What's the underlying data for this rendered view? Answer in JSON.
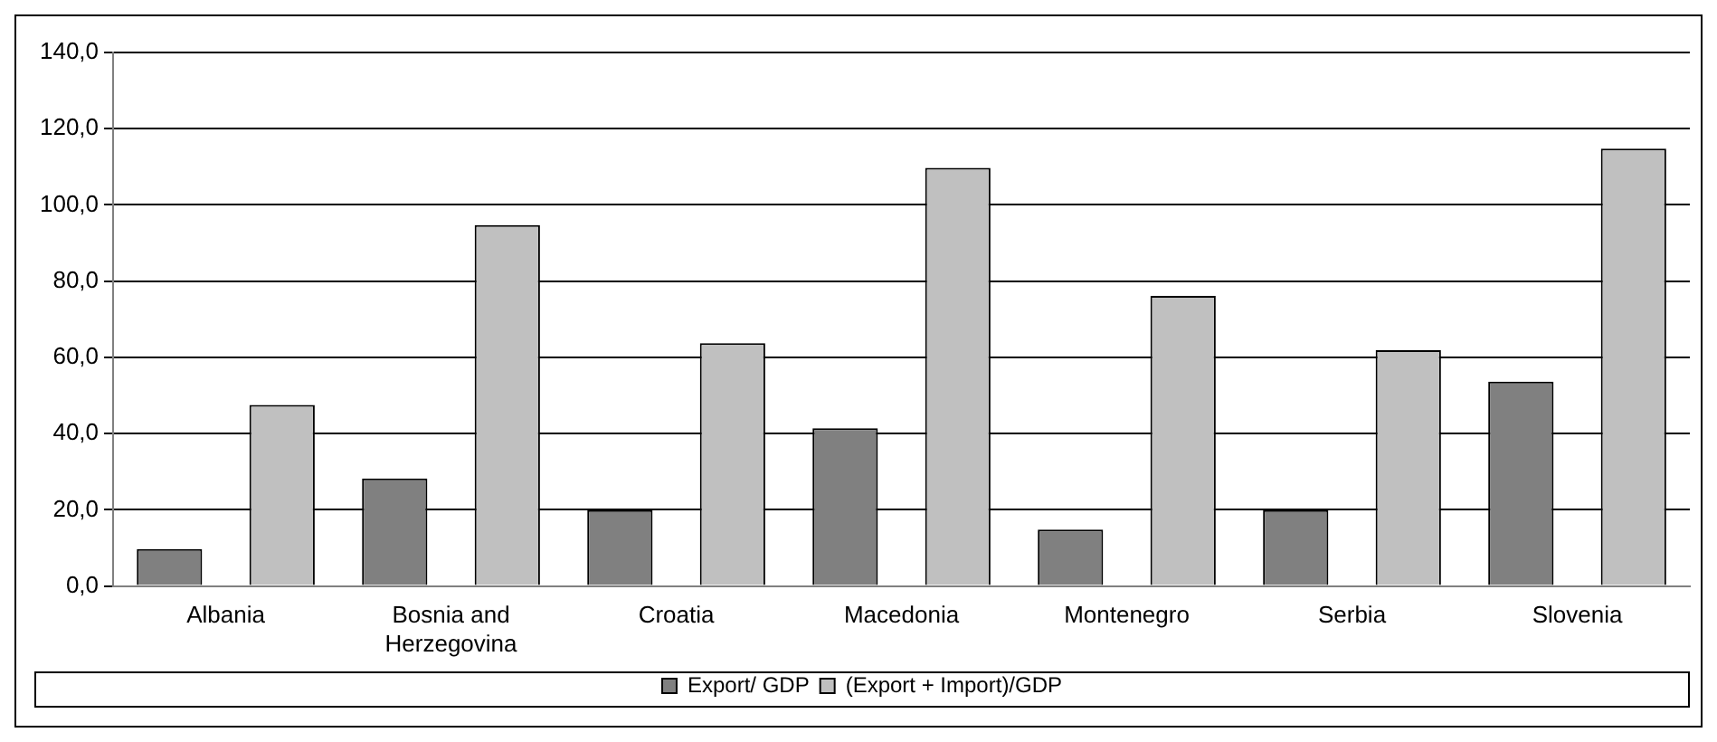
{
  "chart_data": {
    "type": "bar",
    "categories": [
      "Albania",
      "Bosnia and Herzegovina",
      "Croatia",
      "Macedonia",
      "Montenegro",
      "Serbia",
      "Slovenia"
    ],
    "series": [
      {
        "name": "Export/ GDP",
        "color": "#808080",
        "values": [
          9.7,
          28.2,
          19.9,
          41.4,
          14.8,
          19.9,
          53.6
        ]
      },
      {
        "name": "(Export + Import)/GDP",
        "color": "#c0c0c0",
        "values": [
          47.5,
          94.7,
          63.7,
          109.7,
          76.1,
          61.9,
          114.8
        ]
      }
    ],
    "ylim": [
      0,
      140
    ],
    "yticks": [
      {
        "value": 0,
        "label": "0,0"
      },
      {
        "value": 20,
        "label": "20,0"
      },
      {
        "value": 40,
        "label": "40,0"
      },
      {
        "value": 60,
        "label": "60,0"
      },
      {
        "value": 80,
        "label": "80,0"
      },
      {
        "value": 100,
        "label": "100,0"
      },
      {
        "value": 120,
        "label": "120,0"
      },
      {
        "value": 140,
        "label": "140,0"
      }
    ],
    "grid": "y",
    "legend": "bottom"
  }
}
